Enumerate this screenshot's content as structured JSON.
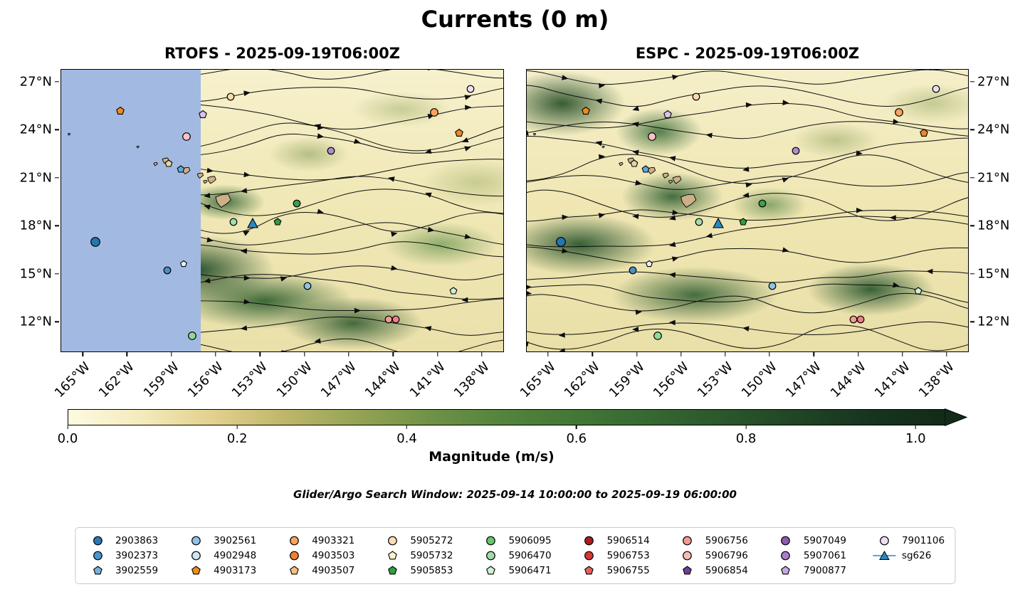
{
  "figure_title": "Currents (0 m)",
  "panels": [
    {
      "title": "RTOFS - 2025-09-19T06:00Z",
      "yticks_side": "left",
      "masked_left": true
    },
    {
      "title": "ESPC - 2025-09-19T06:00Z",
      "yticks_side": "right",
      "masked_left": false
    }
  ],
  "subtitle": "Glider/Argo Search Window: 2025-09-14 10:00:00 to 2025-09-19 06:00:00",
  "axes": {
    "x_tick_labels": [
      "165°W",
      "162°W",
      "159°W",
      "156°W",
      "153°W",
      "150°W",
      "147°W",
      "144°W",
      "141°W",
      "138°W"
    ],
    "x_tick_values": [
      -165,
      -162,
      -159,
      -156,
      -153,
      -150,
      -147,
      -144,
      -141,
      -138
    ],
    "y_tick_labels": [
      "27°N",
      "24°N",
      "21°N",
      "18°N",
      "15°N",
      "12°N"
    ],
    "y_tick_values": [
      27,
      24,
      21,
      18,
      15,
      12
    ],
    "lon_range": [
      -166.5,
      -136.5
    ],
    "lat_range": [
      27.8,
      10.1
    ]
  },
  "colorbar": {
    "label": "Magnitude (m/s)",
    "tick_labels": [
      "0.0",
      "0.2",
      "0.4",
      "0.6",
      "0.8",
      "1.0"
    ],
    "tick_values": [
      0,
      0.2,
      0.4,
      0.6,
      0.8,
      1.0
    ],
    "vmin": 0,
    "vmax": 1.0,
    "extend": "max",
    "axis_max": 1.035,
    "arrow_color": "#122b18",
    "gradient": [
      "#fdfae3",
      "#f4ebbb",
      "#e2d08c",
      "#bdb569",
      "#93a353",
      "#6d9146",
      "#53833c",
      "#437636",
      "#366732",
      "#2b562b",
      "#204424",
      "#173421",
      "#122b18"
    ]
  },
  "map": {
    "mask_color": "#a2b9e2",
    "island_color": "#cdb088",
    "mask_east_lon": -157.05
  },
  "legend": {
    "entries": [
      {
        "id": "2903863",
        "shape": "circle",
        "color": "#2e77b3"
      },
      {
        "id": "3902373",
        "shape": "circle",
        "color": "#4d94c8"
      },
      {
        "id": "3902559",
        "shape": "pentagon",
        "color": "#74b2de"
      },
      {
        "id": "3902561",
        "shape": "circle",
        "color": "#8fc3e6"
      },
      {
        "id": "4902948",
        "shape": "circle",
        "color": "#cde6f5"
      },
      {
        "id": "4903173",
        "shape": "pentagon",
        "color": "#ef8c1a"
      },
      {
        "id": "4903321",
        "shape": "circle",
        "color": "#f9a35c"
      },
      {
        "id": "4903503",
        "shape": "circle",
        "color": "#f08030"
      },
      {
        "id": "4903507",
        "shape": "pentagon",
        "color": "#f7bf82"
      },
      {
        "id": "5905272",
        "shape": "circle",
        "color": "#fcdcb5"
      },
      {
        "id": "5905732",
        "shape": "pentagon",
        "color": "#fbf3cd"
      },
      {
        "id": "5905853",
        "shape": "pentagon",
        "color": "#2f9e41"
      },
      {
        "id": "5906095",
        "shape": "circle",
        "color": "#63c76e"
      },
      {
        "id": "5906470",
        "shape": "circle",
        "color": "#9fdca8"
      },
      {
        "id": "5906471",
        "shape": "pentagon",
        "color": "#ccf2cf"
      },
      {
        "id": "5906514",
        "shape": "circle",
        "color": "#b01c1c"
      },
      {
        "id": "5906753",
        "shape": "circle",
        "color": "#d93636"
      },
      {
        "id": "5906755",
        "shape": "pentagon",
        "color": "#e4605c"
      },
      {
        "id": "5906756",
        "shape": "circle",
        "color": "#f59a93"
      },
      {
        "id": "5906796",
        "shape": "circle",
        "color": "#f7bcb6"
      },
      {
        "id": "5906854",
        "shape": "pentagon",
        "color": "#6d3f94"
      },
      {
        "id": "5907049",
        "shape": "circle",
        "color": "#8e5bad"
      },
      {
        "id": "5907061",
        "shape": "circle",
        "color": "#a87fc4"
      },
      {
        "id": "7900877",
        "shape": "pentagon",
        "color": "#c9a8dd"
      },
      {
        "id": "7901106",
        "shape": "circle",
        "color": "#ecdcf5"
      },
      {
        "id": "sg626",
        "shape": "glider",
        "color": "#2e86c1"
      }
    ]
  },
  "chart_data": {
    "type": "heatmap",
    "title": "Currents (0 m)",
    "panel_titles": [
      "RTOFS - 2025-09-19T06:00Z",
      "ESPC - 2025-09-19T06:00Z"
    ],
    "field": "ocean surface current magnitude with streamline direction arrows",
    "colorbar_label": "Magnitude (m/s)",
    "value_range": [
      0,
      1.0
    ],
    "xlabel": "longitude",
    "ylabel": "latitude",
    "x_ticks": [
      "165°W",
      "162°W",
      "159°W",
      "156°W",
      "153°W",
      "150°W",
      "147°W",
      "144°W",
      "141°W",
      "138°W"
    ],
    "y_ticks": [
      "27°N",
      "24°N",
      "21°N",
      "18°N",
      "15°N",
      "12°N"
    ],
    "markers": [
      {
        "lon": -162.5,
        "lat": 25.2,
        "shape": "pentagon",
        "color": "#ef8c1a",
        "size": 13
      },
      {
        "lon": -156.9,
        "lat": 25.0,
        "shape": "pentagon",
        "color": "#d9c2ec",
        "size": 13
      },
      {
        "lon": -155.0,
        "lat": 26.1,
        "shape": "circle",
        "color": "#fcd9ae",
        "size": 12
      },
      {
        "lon": -138.7,
        "lat": 26.6,
        "shape": "circle",
        "color": "#ecdcf5",
        "size": 12
      },
      {
        "lon": -141.2,
        "lat": 25.1,
        "shape": "circle",
        "color": "#f9a35c",
        "size": 13
      },
      {
        "lon": -139.5,
        "lat": 23.8,
        "shape": "pentagon",
        "color": "#f0872a",
        "size": 13
      },
      {
        "lon": -158.0,
        "lat": 23.6,
        "shape": "circle",
        "color": "#f7c2c8",
        "size": 13
      },
      {
        "lon": -148.2,
        "lat": 22.7,
        "shape": "circle",
        "color": "#b18cd0",
        "size": 12
      },
      {
        "lon": -159.2,
        "lat": 21.9,
        "shape": "pentagon",
        "color": "#e3d5a4",
        "size": 12
      },
      {
        "lon": -158.4,
        "lat": 21.55,
        "shape": "pentagon",
        "color": "#5fa8d8",
        "size": 12
      },
      {
        "lon": -150.5,
        "lat": 19.4,
        "shape": "circle",
        "color": "#3f9e4d",
        "size": 12
      },
      {
        "lon": -154.8,
        "lat": 18.25,
        "shape": "circle",
        "color": "#a5dcb0",
        "size": 12
      },
      {
        "lon": -153.5,
        "lat": 18.15,
        "shape": "glider",
        "color": "#2e86c1",
        "size": 16
      },
      {
        "lon": -151.8,
        "lat": 18.25,
        "shape": "pentagon",
        "color": "#2f9e41",
        "size": 12
      },
      {
        "lon": -164.2,
        "lat": 17.0,
        "shape": "circle",
        "color": "#2576b0",
        "size": 15
      },
      {
        "lon": -159.3,
        "lat": 15.2,
        "shape": "circle",
        "color": "#4a90c5",
        "size": 12
      },
      {
        "lon": -158.2,
        "lat": 15.6,
        "shape": "pentagon",
        "color": "#e8f4fb",
        "size": 11
      },
      {
        "lon": -149.8,
        "lat": 14.2,
        "shape": "circle",
        "color": "#8fc3e6",
        "size": 12
      },
      {
        "lon": -139.9,
        "lat": 13.9,
        "shape": "pentagon",
        "color": "#ccf2cf",
        "size": 12
      },
      {
        "lon": -144.3,
        "lat": 12.1,
        "shape": "circle",
        "color": "#f59a93",
        "size": 12
      },
      {
        "lon": -143.8,
        "lat": 12.1,
        "shape": "circle",
        "color": "#ef7f89",
        "size": 12
      },
      {
        "lon": -157.6,
        "lat": 11.1,
        "shape": "circle",
        "color": "#8fd99a",
        "size": 13
      }
    ]
  }
}
